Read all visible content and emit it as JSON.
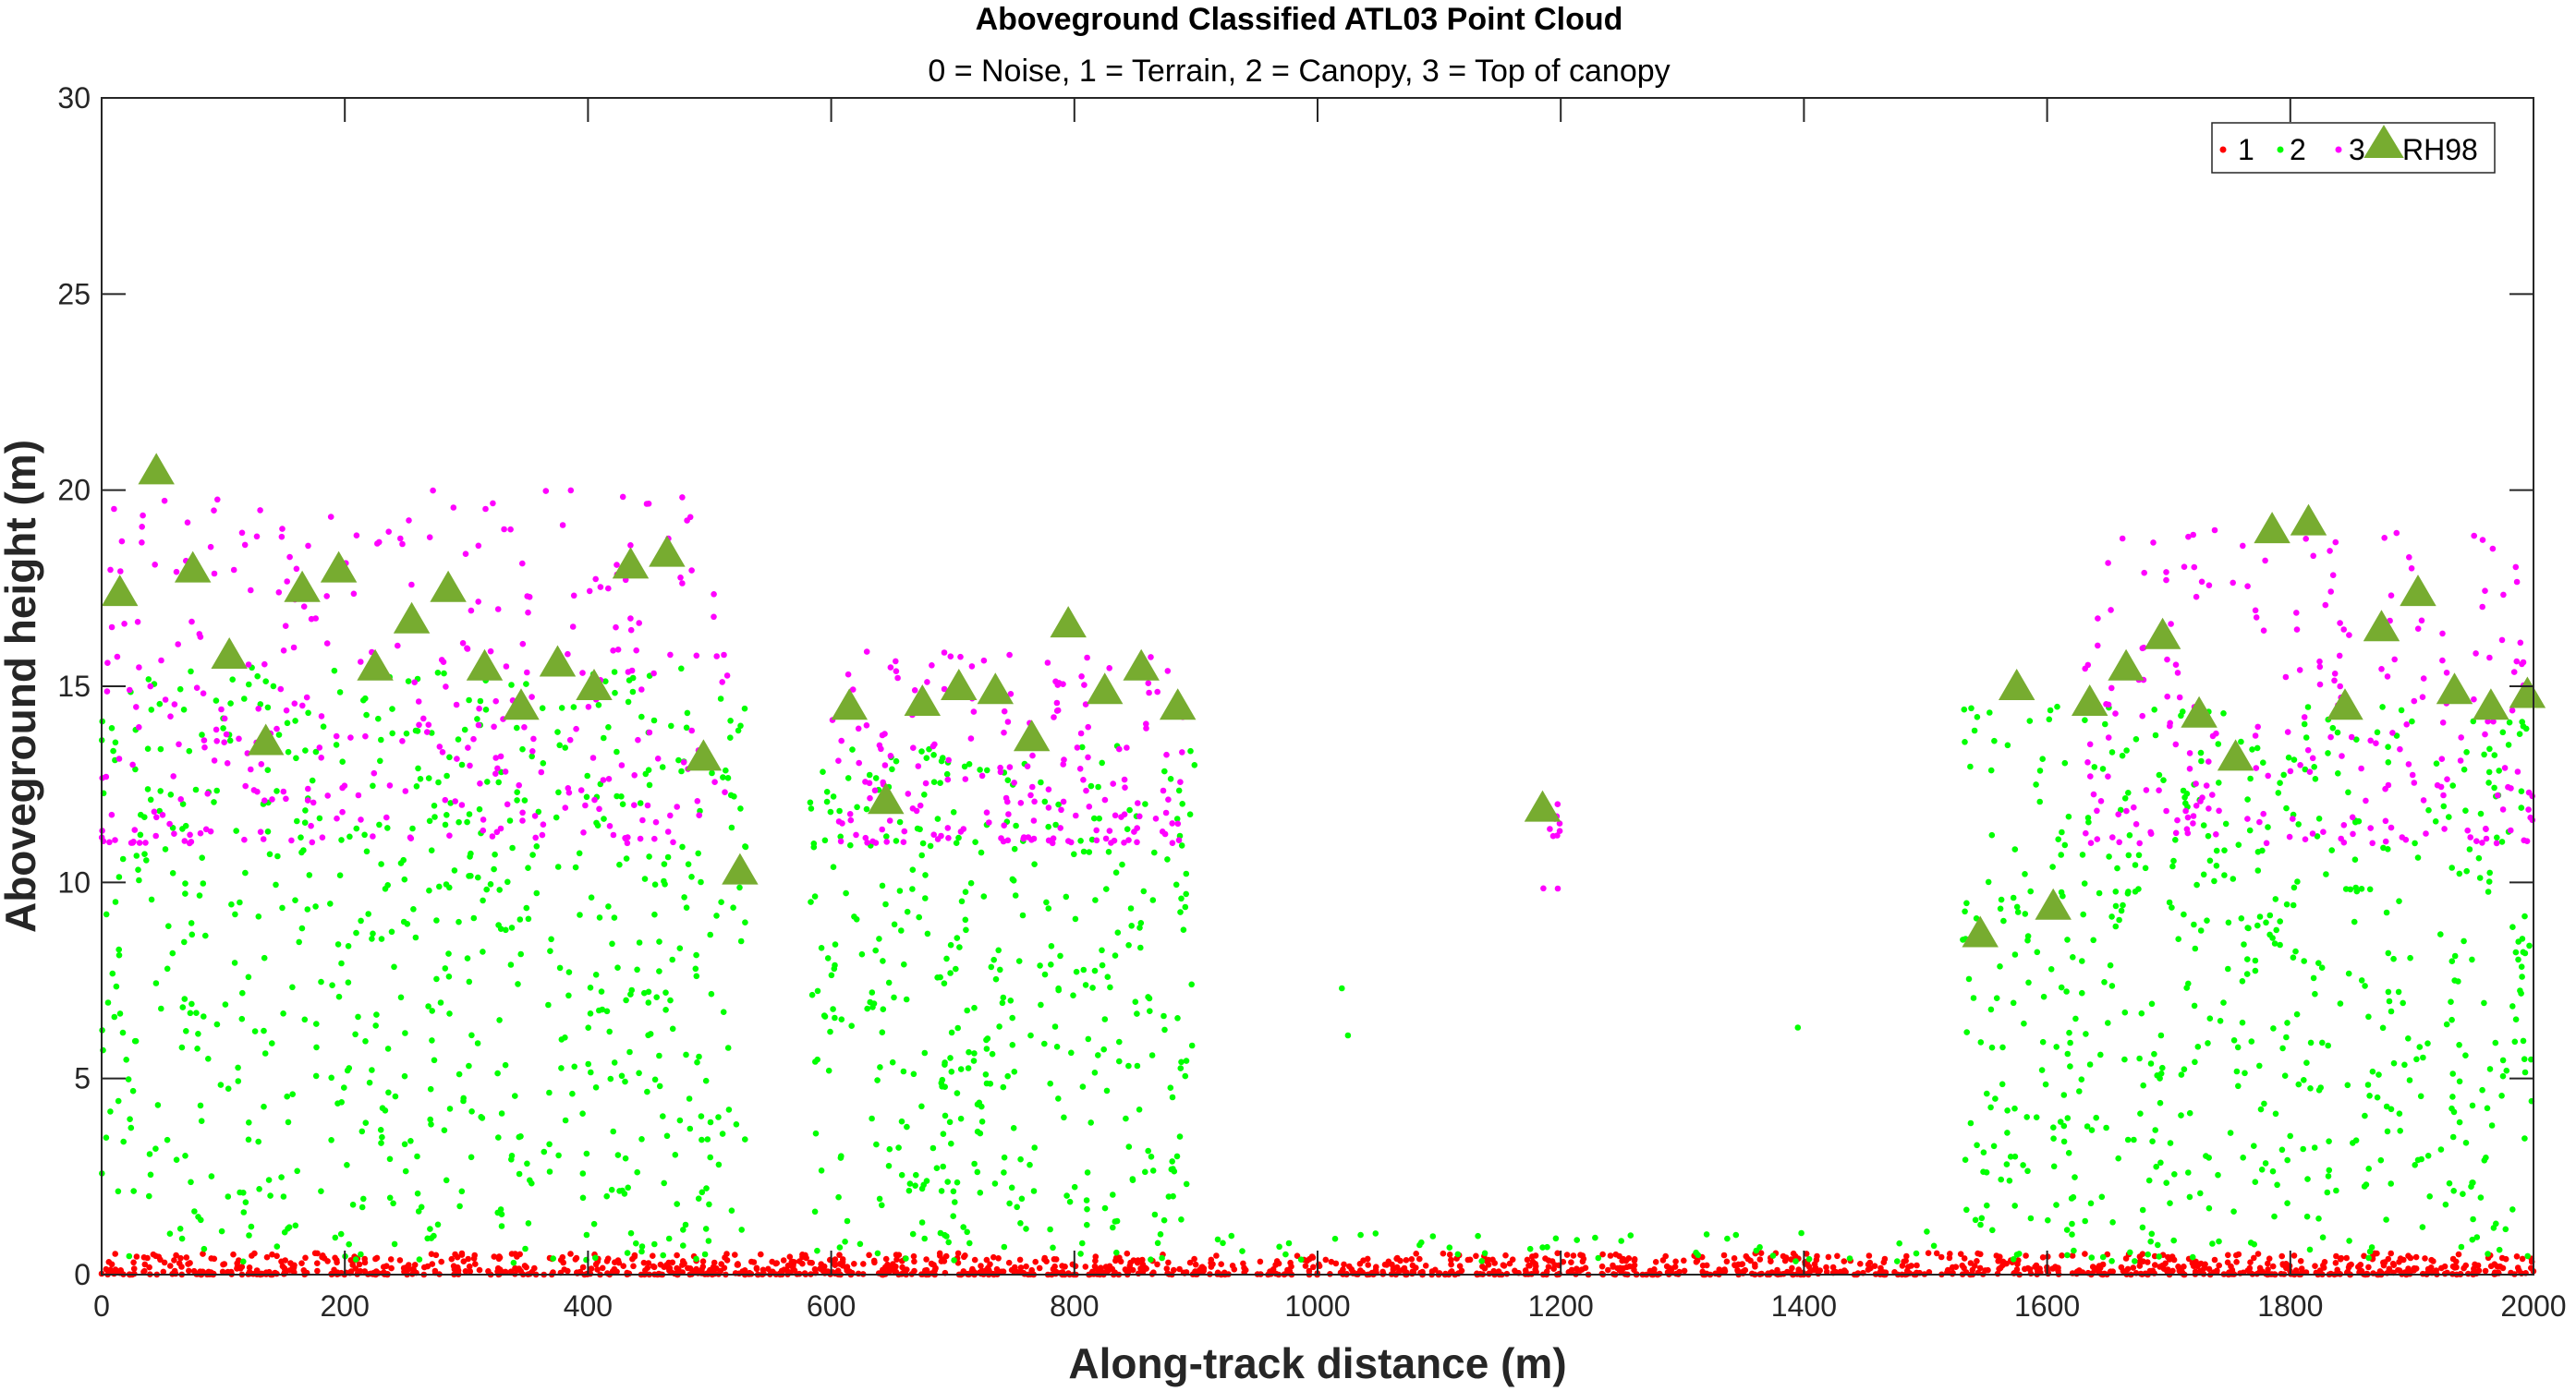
{
  "chart_data": {
    "type": "scatter",
    "title": "Aboveground Classified ATL03 Point Cloud",
    "subtitle": "0 = Noise, 1 = Terrain, 2 = Canopy, 3 = Top of canopy",
    "xlabel": "Along-track distance (m)",
    "ylabel": "Aboveground height (m)",
    "xlim": [
      0,
      2000
    ],
    "ylim": [
      0,
      30
    ],
    "xticks": [
      "0",
      "200",
      "400",
      "600",
      "800",
      "1000",
      "1200",
      "1400",
      "1600",
      "1800",
      "2000"
    ],
    "yticks": [
      "0",
      "5",
      "10",
      "15",
      "20",
      "25",
      "30"
    ],
    "grid": false,
    "legend_position": "top-right",
    "legend": [
      "1",
      "2",
      "3",
      "RH98"
    ],
    "colors": {
      "terrain": "#ff0000",
      "canopy": "#00ff00",
      "top_of_canopy": "#ff00ff",
      "rh98": "#77ac30"
    },
    "canopy_segments": [
      {
        "x": [
          0,
          530
        ],
        "ymax": 15.5
      },
      {
        "x": [
          580,
          900
        ],
        "ymax": 13.5
      },
      {
        "x": [
          1530,
          2000
        ],
        "ymax": 14.5
      }
    ],
    "top_canopy_segments": [
      {
        "x": [
          0,
          515
        ],
        "ymin": 11,
        "ymax": 20
      },
      {
        "x": [
          600,
          890
        ],
        "ymin": 11,
        "ymax": 16
      },
      {
        "x": [
          1185,
          1200
        ],
        "ymin": 9.8,
        "ymax": 12
      },
      {
        "x": [
          1630,
          2000
        ],
        "ymin": 11,
        "ymax": 19
      }
    ],
    "series": [
      {
        "name": "RH98",
        "marker": "triangle",
        "x": [
          15,
          45,
          75,
          105,
          135,
          165,
          195,
          225,
          255,
          285,
          315,
          345,
          375,
          405,
          435,
          465,
          495,
          525,
          615,
          645,
          675,
          705,
          735,
          765,
          795,
          825,
          855,
          885,
          1185,
          1545,
          1575,
          1605,
          1635,
          1665,
          1695,
          1725,
          1755,
          1785,
          1815,
          1845,
          1875,
          1905,
          1935,
          1965,
          1995
        ],
        "y": [
          17.4,
          20.5,
          18.0,
          15.8,
          13.6,
          17.5,
          18.0,
          15.5,
          16.7,
          17.5,
          15.5,
          14.5,
          15.6,
          15.0,
          18.1,
          18.4,
          13.2,
          10.3,
          14.5,
          12.1,
          14.6,
          15.0,
          14.9,
          13.7,
          16.6,
          14.9,
          15.5,
          14.5,
          11.9,
          8.7,
          15.0,
          9.4,
          14.6,
          15.5,
          16.3,
          14.3,
          13.2,
          19.0,
          19.2,
          14.5,
          16.5,
          17.4,
          14.9,
          14.5,
          14.8
        ]
      }
    ]
  }
}
